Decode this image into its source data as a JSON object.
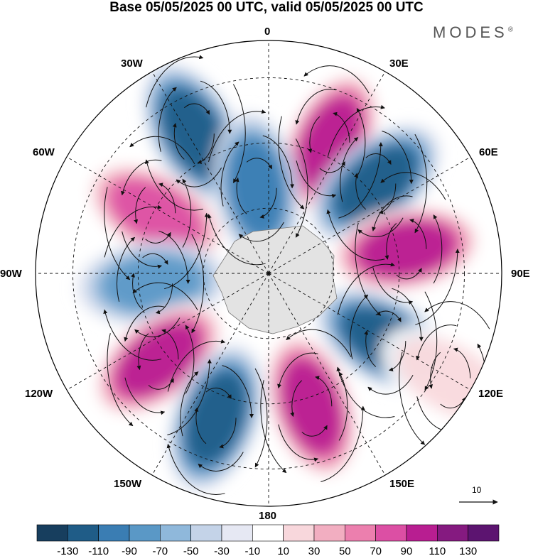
{
  "title": "Base 05/05/2025 00 UTC, valid 05/05/2025 00 UTC",
  "brand": "MODES",
  "brand_mark": "®",
  "longitude_labels": {
    "n": "0",
    "e30": "30E",
    "e60": "60E",
    "e90": "90E",
    "e120": "120E",
    "e150": "150E",
    "s": "180",
    "w150": "150W",
    "w120": "120W",
    "w90": "90W",
    "w60": "60W",
    "w30": "30W"
  },
  "reference_vector": {
    "value": "10"
  },
  "colorbar": {
    "tick_labels": [
      "-130",
      "-110",
      "-90",
      "-70",
      "-50",
      "-30",
      "-10",
      "10",
      "30",
      "50",
      "70",
      "90",
      "110",
      "130"
    ],
    "colors": [
      "#173e5e",
      "#1f5c87",
      "#3a7db3",
      "#5a98c6",
      "#8fb8db",
      "#c4d3e8",
      "#e6e8f3",
      "#ffffff",
      "#f8d7dc",
      "#f2aec1",
      "#ec7fae",
      "#dc4fa4",
      "#b81e91",
      "#851a80",
      "#5c1470"
    ]
  },
  "map_data": {
    "projection": "south-polar-stereographic",
    "anomalies": [
      {
        "lon": -28,
        "lat_ring": 0.68,
        "value": -110
      },
      {
        "lon": 25,
        "lat_ring": 0.62,
        "value": 110
      },
      {
        "lon": 50,
        "lat_ring": 0.6,
        "value": -130
      },
      {
        "lon": -8,
        "lat_ring": 0.37,
        "value": -90
      },
      {
        "lon": -62,
        "lat_ring": 0.55,
        "value": 90
      },
      {
        "lon": 80,
        "lat_ring": 0.6,
        "value": 110
      },
      {
        "lon": -95,
        "lat_ring": 0.5,
        "value": -70
      },
      {
        "lon": 120,
        "lat_ring": 0.58,
        "value": -110
      },
      {
        "lon": -128,
        "lat_ring": 0.6,
        "value": 130
      },
      {
        "lon": -160,
        "lat_ring": 0.66,
        "value": -130
      },
      {
        "lon": 162,
        "lat_ring": 0.6,
        "value": 130
      },
      {
        "lon": 120,
        "lat_ring": 0.9,
        "value": 30
      }
    ]
  }
}
